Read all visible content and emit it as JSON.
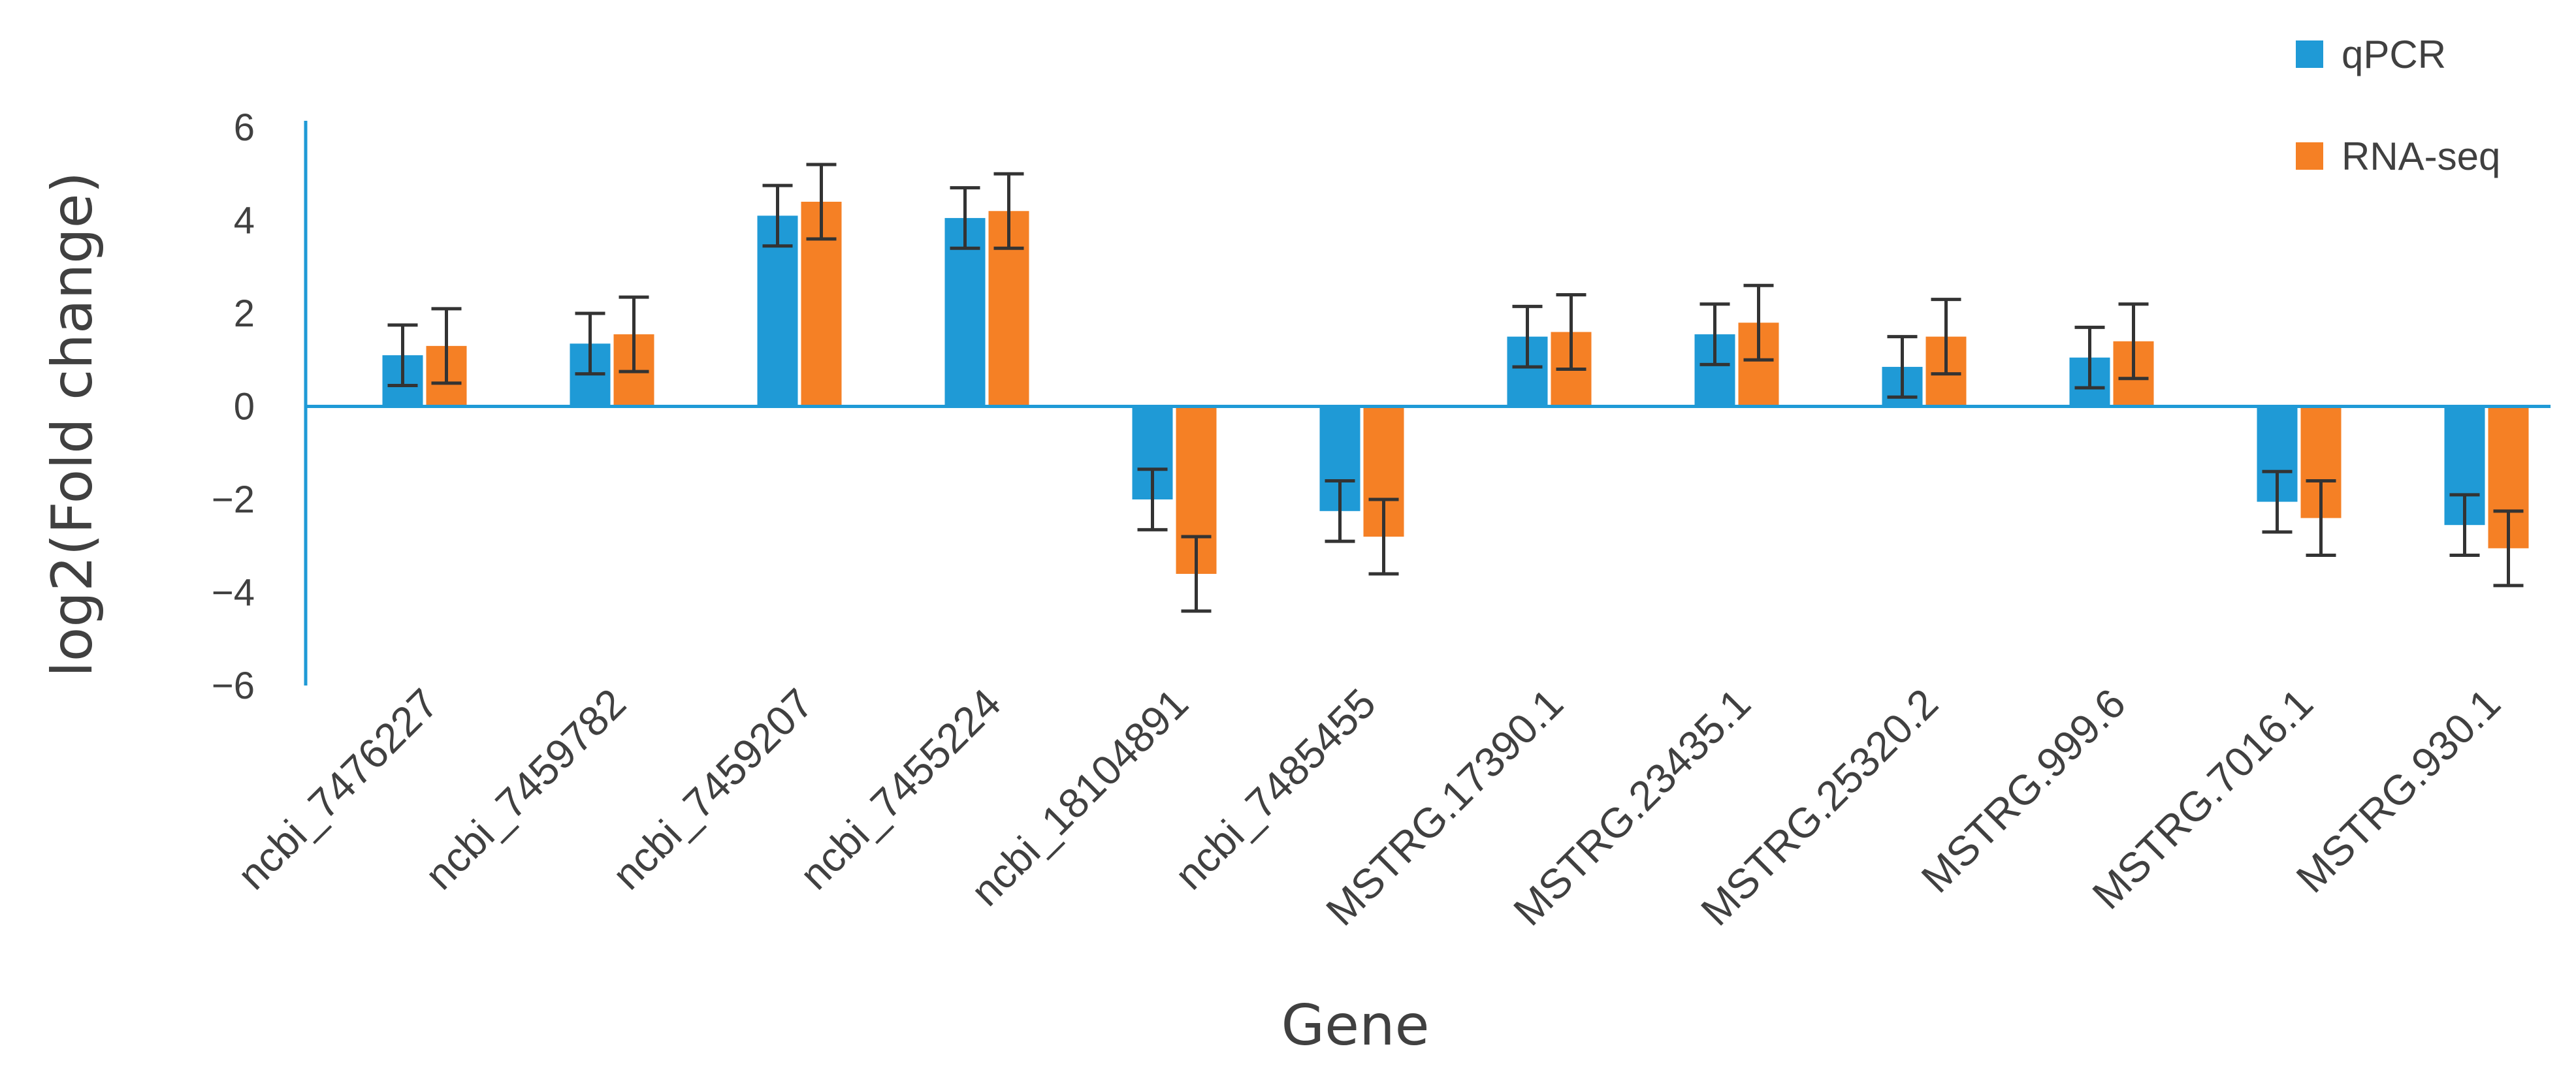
{
  "chart_data": {
    "type": "bar",
    "title": "",
    "xlabel": "Gene",
    "ylabel": "log2(Fold change)",
    "ylim": [
      -6,
      6
    ],
    "yticks": [
      6,
      4,
      2,
      0,
      -2,
      -4,
      -6
    ],
    "ytick_labels": [
      "6",
      "4",
      "2",
      "0",
      "−2",
      "−4",
      "−6"
    ],
    "grid": false,
    "legend_position": "top-right",
    "categories": [
      "ncbi_7476227",
      "ncbi_7459782",
      "ncbi_7459207",
      "ncbi_7455224",
      "ncbi_18104891",
      "ncbi_7485455",
      "MSTRG.17390.1",
      "MSTRG.23435.1",
      "MSTRG.25320.2",
      "MSTRG.999.6",
      "MSTRG.7016.1",
      "MSTRG.930.1"
    ],
    "series": [
      {
        "name": "qPCR",
        "color": "#1F9AD6",
        "values": [
          1.1,
          1.35,
          4.1,
          4.05,
          -2.0,
          -2.25,
          1.5,
          1.55,
          0.85,
          1.05,
          -2.05,
          -2.55
        ],
        "errors": [
          0.65,
          0.65,
          0.65,
          0.65,
          0.65,
          0.65,
          0.65,
          0.65,
          0.65,
          0.65,
          0.65,
          0.65
        ]
      },
      {
        "name": "RNA-seq",
        "color": "#F58025",
        "values": [
          1.3,
          1.55,
          4.4,
          4.2,
          -3.6,
          -2.8,
          1.6,
          1.8,
          1.5,
          1.4,
          -2.4,
          -3.05
        ],
        "errors": [
          0.8,
          0.8,
          0.8,
          0.8,
          0.8,
          0.8,
          0.8,
          0.8,
          0.8,
          0.8,
          0.8,
          0.8
        ]
      }
    ]
  },
  "colors": {
    "axis": "#1F9AD6",
    "error_bar": "#333333",
    "text": "#404040"
  }
}
